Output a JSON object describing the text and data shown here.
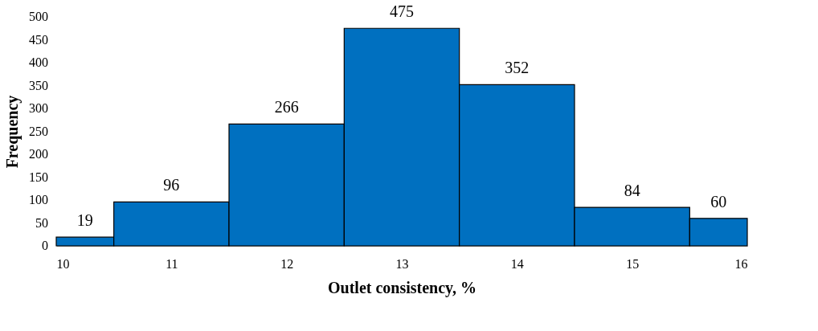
{
  "chart_data": {
    "type": "histogram",
    "xlabel": "Outlet consistency, %",
    "ylabel": "Frequency",
    "bins": [
      10,
      10.5,
      11.5,
      12.5,
      13.5,
      14.5,
      15.5,
      16
    ],
    "values": [
      19,
      96,
      266,
      475,
      352,
      84,
      60
    ],
    "color": "#0070c0",
    "data_labels": true,
    "xlim": [
      10,
      16
    ],
    "xticks": [
      10,
      11,
      12,
      13,
      14,
      15,
      16
    ],
    "ylim": [
      0,
      500
    ],
    "yticks": [
      0,
      50,
      100,
      150,
      200,
      250,
      300,
      350,
      400,
      450,
      500
    ]
  }
}
